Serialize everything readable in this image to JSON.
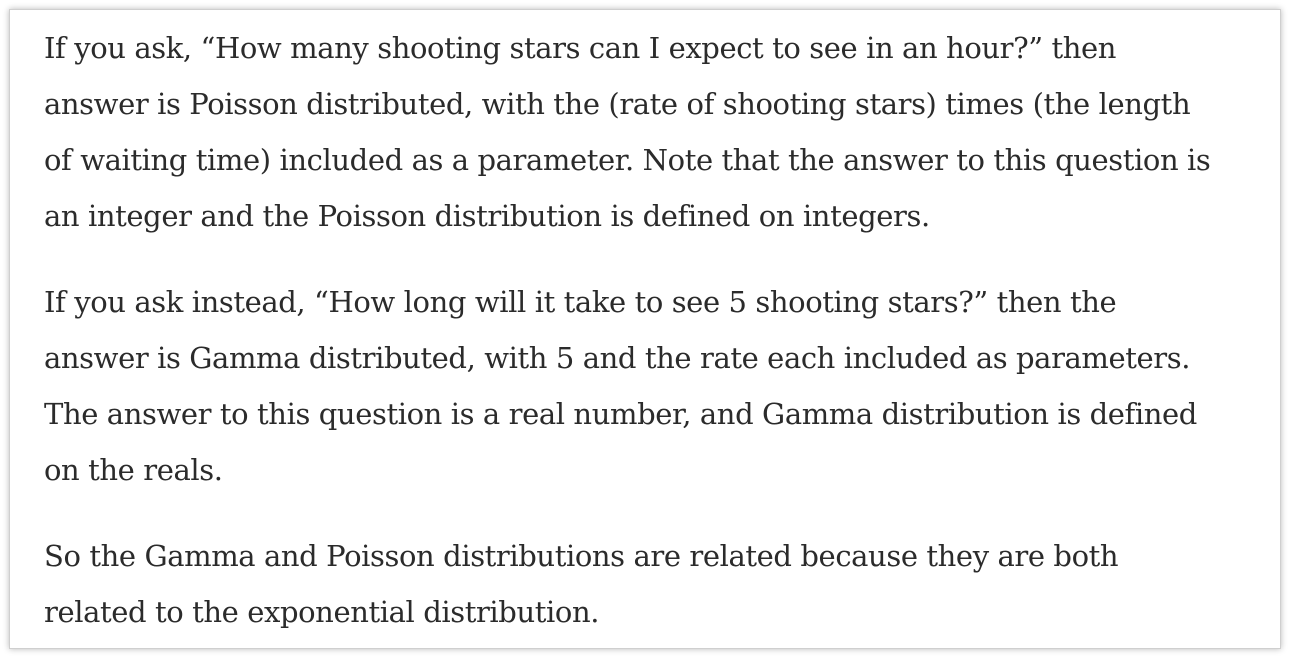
{
  "article": {
    "paragraphs": [
      {
        "lines": [
          "If you ask, “How many shooting stars can I expect to see in an hour?” then",
          "answer is Poisson distributed, with the (rate of shooting stars) times (the length",
          "of waiting time) included as a parameter. Note that the answer to this question is",
          "an integer and the Poisson distribution is defined on integers."
        ]
      },
      {
        "lines": [
          "If you ask instead, “How long will it take to see 5 shooting stars?” then the",
          "answer is Gamma distributed, with 5 and the rate each included as parameters.",
          "The answer to this question is a real number, and Gamma distribution is defined",
          "on the reals."
        ]
      },
      {
        "lines": [
          "So the Gamma and Poisson distributions are related because they are both",
          "related to the exponential distribution."
        ]
      }
    ]
  }
}
